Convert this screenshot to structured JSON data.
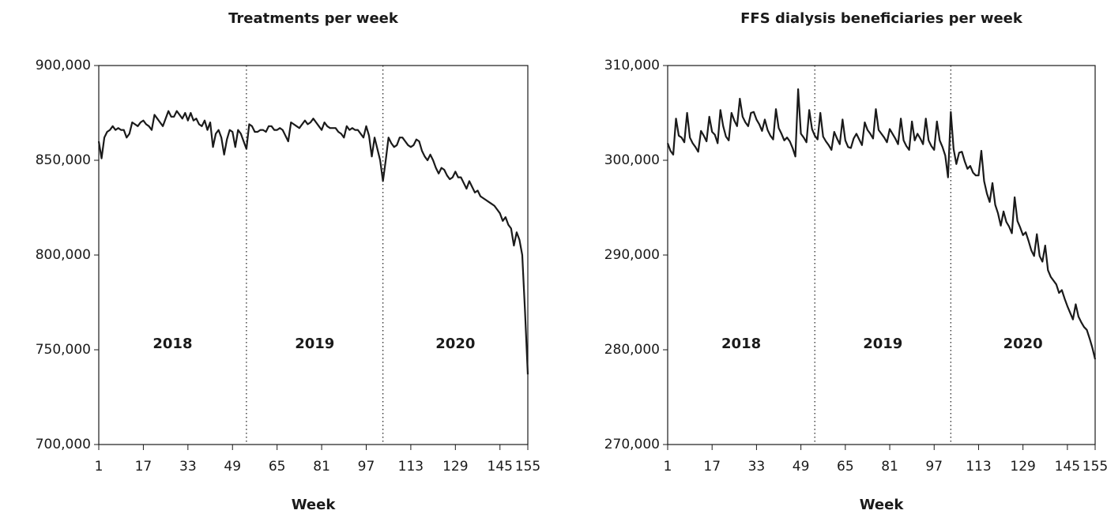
{
  "chart_data": [
    {
      "type": "line",
      "title": "Treatments per week",
      "x_label": "Week",
      "x": [
        1,
        2,
        3,
        4,
        5,
        6,
        7,
        8,
        9,
        10,
        11,
        12,
        13,
        14,
        15,
        16,
        17,
        18,
        19,
        20,
        21,
        22,
        23,
        24,
        25,
        26,
        27,
        28,
        29,
        30,
        31,
        32,
        33,
        34,
        35,
        36,
        37,
        38,
        39,
        40,
        41,
        42,
        43,
        44,
        45,
        46,
        47,
        48,
        49,
        50,
        51,
        52,
        53,
        54,
        55,
        56,
        57,
        58,
        59,
        60,
        61,
        62,
        63,
        64,
        65,
        66,
        67,
        68,
        69,
        70,
        71,
        72,
        73,
        74,
        75,
        76,
        77,
        78,
        79,
        80,
        81,
        82,
        83,
        84,
        85,
        86,
        87,
        88,
        89,
        90,
        91,
        92,
        93,
        94,
        95,
        96,
        97,
        98,
        99,
        100,
        101,
        102,
        103,
        104,
        105,
        106,
        107,
        108,
        109,
        110,
        111,
        112,
        113,
        114,
        115,
        116,
        117,
        118,
        119,
        120,
        121,
        122,
        123,
        124,
        125,
        126,
        127,
        128,
        129,
        130,
        131,
        132,
        133,
        134,
        135,
        136,
        137,
        138,
        139,
        140,
        141,
        142,
        143,
        144,
        145,
        146,
        147,
        148,
        149,
        150,
        151,
        152,
        153,
        154,
        155
      ],
      "series": [
        {
          "color": "#1a1a1a",
          "values": [
            860000,
            851000,
            862000,
            865000,
            866000,
            868000,
            866000,
            867000,
            866000,
            866000,
            862000,
            864000,
            870000,
            869000,
            868000,
            870000,
            871000,
            869000,
            868000,
            866000,
            874000,
            872000,
            870000,
            868000,
            872000,
            876000,
            873000,
            873000,
            876000,
            874000,
            872000,
            875000,
            871000,
            875000,
            871000,
            872000,
            869000,
            868000,
            871000,
            866000,
            870000,
            857000,
            864000,
            866000,
            862000,
            853000,
            861000,
            866000,
            865000,
            857000,
            866000,
            864000,
            860000,
            856000,
            869000,
            868000,
            865000,
            865000,
            866000,
            866000,
            865000,
            868000,
            868000,
            866000,
            866000,
            867000,
            866000,
            863000,
            860000,
            870000,
            869000,
            868000,
            867000,
            869000,
            871000,
            869000,
            870000,
            872000,
            870000,
            868000,
            866000,
            870000,
            868000,
            867000,
            867000,
            867000,
            865000,
            864000,
            862000,
            868000,
            866000,
            867000,
            866000,
            866000,
            864000,
            862000,
            868000,
            863000,
            852000,
            862000,
            856000,
            850000,
            839000,
            850000,
            862000,
            859000,
            857000,
            858000,
            862000,
            862000,
            860000,
            858000,
            857000,
            858000,
            861000,
            860000,
            855000,
            852000,
            850000,
            853000,
            850000,
            846000,
            843000,
            846000,
            845000,
            842000,
            840000,
            841000,
            844000,
            841000,
            841000,
            838000,
            835000,
            839000,
            836000,
            833000,
            834000,
            831000,
            830000,
            829000,
            828000,
            827000,
            826000,
            824000,
            822000,
            818000,
            820000,
            816000,
            814000,
            805000,
            812000,
            808000,
            800000,
            770000,
            737000
          ]
        }
      ],
      "xlim": [
        1,
        155
      ],
      "xticks": [
        1,
        17,
        33,
        49,
        65,
        81,
        97,
        113,
        129,
        145,
        155
      ],
      "ylim": [
        700000,
        900000
      ],
      "yticks": [
        {
          "value": 700000,
          "label": "700,000"
        },
        {
          "value": 750000,
          "label": "750,000"
        },
        {
          "value": 800000,
          "label": "800,000"
        },
        {
          "value": 850000,
          "label": "850,000"
        },
        {
          "value": 900000,
          "label": "900,000"
        }
      ],
      "vlines": [
        54,
        103
      ],
      "annotations": [
        "2018",
        "2019",
        "2020"
      ]
    },
    {
      "type": "line",
      "title": "FFS dialysis beneficiaries per week",
      "x_label": "Week",
      "x": [
        1,
        2,
        3,
        4,
        5,
        6,
        7,
        8,
        9,
        10,
        11,
        12,
        13,
        14,
        15,
        16,
        17,
        18,
        19,
        20,
        21,
        22,
        23,
        24,
        25,
        26,
        27,
        28,
        29,
        30,
        31,
        32,
        33,
        34,
        35,
        36,
        37,
        38,
        39,
        40,
        41,
        42,
        43,
        44,
        45,
        46,
        47,
        48,
        49,
        50,
        51,
        52,
        53,
        54,
        55,
        56,
        57,
        58,
        59,
        60,
        61,
        62,
        63,
        64,
        65,
        66,
        67,
        68,
        69,
        70,
        71,
        72,
        73,
        74,
        75,
        76,
        77,
        78,
        79,
        80,
        81,
        82,
        83,
        84,
        85,
        86,
        87,
        88,
        89,
        90,
        91,
        92,
        93,
        94,
        95,
        96,
        97,
        98,
        99,
        100,
        101,
        102,
        103,
        104,
        105,
        106,
        107,
        108,
        109,
        110,
        111,
        112,
        113,
        114,
        115,
        116,
        117,
        118,
        119,
        120,
        121,
        122,
        123,
        124,
        125,
        126,
        127,
        128,
        129,
        130,
        131,
        132,
        133,
        134,
        135,
        136,
        137,
        138,
        139,
        140,
        141,
        142,
        143,
        144,
        145,
        146,
        147,
        148,
        149,
        150,
        151,
        152,
        153,
        154,
        155
      ],
      "series": [
        {
          "color": "#1a1a1a",
          "values": [
            301800,
            301000,
            300600,
            304400,
            302600,
            302400,
            301900,
            305000,
            302400,
            301800,
            301400,
            300900,
            303100,
            302600,
            302000,
            304600,
            303000,
            302700,
            301800,
            305300,
            303600,
            302500,
            302100,
            305000,
            304200,
            303600,
            306500,
            304600,
            304000,
            303600,
            305000,
            305100,
            304300,
            303800,
            303100,
            304300,
            303200,
            302600,
            302200,
            305400,
            303400,
            302800,
            302100,
            302400,
            302000,
            301300,
            300400,
            307500,
            302800,
            302400,
            301900,
            305300,
            303300,
            302600,
            302200,
            305000,
            302500,
            302000,
            301600,
            301100,
            303000,
            302300,
            301700,
            304300,
            302100,
            301400,
            301300,
            302300,
            302800,
            302200,
            301600,
            304000,
            303200,
            302800,
            302300,
            305400,
            303200,
            302800,
            302400,
            301900,
            303300,
            302800,
            302300,
            301700,
            304400,
            302100,
            301500,
            301100,
            304100,
            302100,
            302800,
            302300,
            301700,
            304400,
            302100,
            301500,
            301100,
            304100,
            302100,
            301400,
            300500,
            298200,
            305100,
            301200,
            299600,
            300800,
            300900,
            299900,
            299100,
            299400,
            298700,
            298400,
            298400,
            301000,
            297800,
            296500,
            295600,
            297600,
            295300,
            294400,
            293100,
            294600,
            293500,
            293000,
            292300,
            296100,
            293600,
            292900,
            292100,
            292400,
            291500,
            290500,
            289900,
            292200,
            289900,
            289300,
            291000,
            288400,
            287700,
            287300,
            286900,
            286000,
            286300,
            285400,
            284600,
            283900,
            283200,
            284800,
            283500,
            282900,
            282400,
            282100,
            281200,
            280200,
            279000
          ]
        }
      ],
      "xlim": [
        1,
        155
      ],
      "xticks": [
        1,
        17,
        33,
        49,
        65,
        81,
        97,
        113,
        129,
        145,
        155
      ],
      "ylim": [
        270000,
        310000
      ],
      "yticks": [
        {
          "value": 270000,
          "label": "270,000"
        },
        {
          "value": 280000,
          "label": "280,000"
        },
        {
          "value": 290000,
          "label": "290,000"
        },
        {
          "value": 300000,
          "label": "300,000"
        },
        {
          "value": 310000,
          "label": "310,000"
        }
      ],
      "vlines": [
        54,
        103
      ],
      "annotations": [
        "2018",
        "2019",
        "2020"
      ]
    }
  ]
}
